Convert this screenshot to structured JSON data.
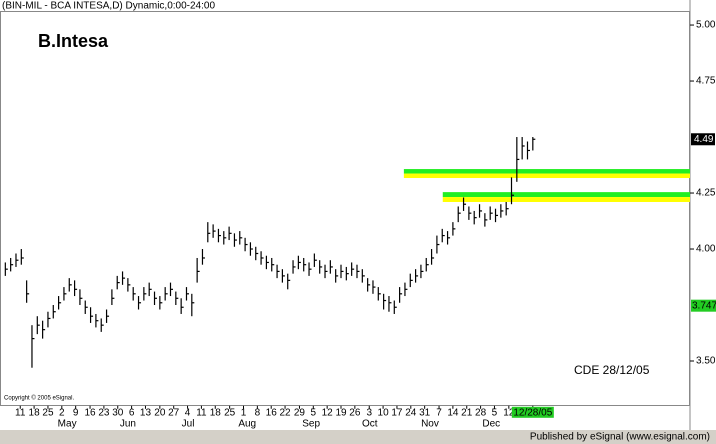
{
  "chart_data": {
    "type": "ohlc",
    "header": "(BIN-MIL - BCA INTESA,D) Dynamic,0:00-24:00",
    "title": "B.Intesa",
    "annotation": "CDE 28/12/05",
    "copyright": "Copyright © 2005 eSignal.",
    "footer": "Published by eSignal (www.esignal.com)",
    "bar_color": "#000000",
    "ylim": [
      3.3,
      5.06
    ],
    "yticks": [
      {
        "value": 5.0,
        "label": "5.00"
      },
      {
        "value": 4.75,
        "label": "4.75"
      },
      {
        "value": 4.25,
        "label": "4.25"
      },
      {
        "value": 4.0,
        "label": "4.00"
      },
      {
        "value": 3.5,
        "label": "3.50"
      }
    ],
    "last_price": {
      "value": 4.49,
      "label": "4.49"
    },
    "marker_price": 3.747,
    "xlim": [
      -1,
      128.5
    ],
    "xticks": [
      {
        "value": 2.8,
        "label": "11"
      },
      {
        "value": 5.4,
        "label": "18"
      },
      {
        "value": 8.0,
        "label": "25"
      },
      {
        "value": 10.6,
        "label": "2"
      },
      {
        "value": 13.2,
        "label": "9"
      },
      {
        "value": 15.9,
        "label": "16"
      },
      {
        "value": 18.5,
        "label": "23"
      },
      {
        "value": 21.1,
        "label": "30"
      },
      {
        "value": 23.7,
        "label": "6"
      },
      {
        "value": 26.3,
        "label": "13"
      },
      {
        "value": 29.0,
        "label": "20"
      },
      {
        "value": 31.6,
        "label": "27"
      },
      {
        "value": 34.2,
        "label": "4"
      },
      {
        "value": 36.8,
        "label": "11"
      },
      {
        "value": 39.4,
        "label": "18"
      },
      {
        "value": 42.1,
        "label": "25"
      },
      {
        "value": 44.7,
        "label": "1"
      },
      {
        "value": 47.3,
        "label": "8"
      },
      {
        "value": 49.9,
        "label": "16"
      },
      {
        "value": 52.5,
        "label": "22"
      },
      {
        "value": 55.2,
        "label": "29"
      },
      {
        "value": 57.8,
        "label": "5"
      },
      {
        "value": 60.4,
        "label": "12"
      },
      {
        "value": 63.0,
        "label": "19"
      },
      {
        "value": 65.6,
        "label": "26"
      },
      {
        "value": 68.3,
        "label": "3"
      },
      {
        "value": 70.9,
        "label": "10"
      },
      {
        "value": 73.5,
        "label": "17"
      },
      {
        "value": 76.1,
        "label": "24"
      },
      {
        "value": 78.7,
        "label": "31"
      },
      {
        "value": 81.4,
        "label": "7"
      },
      {
        "value": 84.0,
        "label": "14"
      },
      {
        "value": 86.6,
        "label": "21"
      },
      {
        "value": 89.2,
        "label": "28"
      },
      {
        "value": 91.8,
        "label": "5"
      },
      {
        "value": 94.5,
        "label": "12"
      },
      {
        "value": 99,
        "label": "12/28/05"
      }
    ],
    "months": [
      {
        "value": 11.6,
        "label": "May"
      },
      {
        "value": 23.0,
        "label": "Jun"
      },
      {
        "value": 34.3,
        "label": "Jul"
      },
      {
        "value": 45.4,
        "label": "Aug"
      },
      {
        "value": 57.4,
        "label": "Sep"
      },
      {
        "value": 68.4,
        "label": "Oct"
      },
      {
        "value": 79.7,
        "label": "Nov"
      },
      {
        "value": 91.2,
        "label": "Dec"
      }
    ],
    "zones": [
      {
        "x_start": 74.8,
        "top": 4.357,
        "bottom": 4.317
      },
      {
        "x_start": 82.1,
        "top": 4.254,
        "bottom": 4.21
      }
    ],
    "zone_colors": [
      "#22ee22",
      "#ffff00"
    ],
    "high": [
      3.94,
      3.96,
      3.98,
      4.0,
      3.86,
      3.66,
      3.7,
      3.68,
      3.72,
      3.75,
      3.79,
      3.83,
      3.87,
      3.86,
      3.82,
      3.77,
      3.74,
      3.71,
      3.69,
      3.73,
      3.82,
      3.88,
      3.9,
      3.87,
      3.83,
      3.79,
      3.83,
      3.85,
      3.81,
      3.79,
      3.83,
      3.85,
      3.81,
      3.78,
      3.83,
      3.8,
      3.96,
      4.0,
      4.12,
      4.11,
      4.09,
      4.08,
      4.1,
      4.07,
      4.08,
      4.05,
      4.03,
      4.01,
      3.99,
      3.97,
      3.96,
      3.93,
      3.91,
      3.89,
      3.95,
      3.97,
      3.96,
      3.94,
      3.98,
      3.95,
      3.93,
      3.95,
      3.91,
      3.93,
      3.92,
      3.94,
      3.93,
      3.91,
      3.87,
      3.86,
      3.83,
      3.8,
      3.79,
      3.77,
      3.83,
      3.85,
      3.89,
      3.91,
      3.93,
      3.96,
      4.0,
      4.06,
      4.09,
      4.08,
      4.12,
      4.19,
      4.23,
      4.19,
      4.17,
      4.2,
      4.16,
      4.19,
      4.18,
      4.2,
      4.21,
      4.32,
      4.5,
      4.5,
      4.48,
      4.5
    ],
    "low": [
      3.88,
      3.9,
      3.92,
      3.93,
      3.76,
      3.47,
      3.62,
      3.6,
      3.65,
      3.69,
      3.73,
      3.77,
      3.81,
      3.79,
      3.75,
      3.71,
      3.67,
      3.65,
      3.63,
      3.67,
      3.75,
      3.82,
      3.84,
      3.81,
      3.77,
      3.73,
      3.77,
      3.79,
      3.75,
      3.73,
      3.77,
      3.79,
      3.75,
      3.71,
      3.77,
      3.7,
      3.85,
      3.93,
      4.03,
      4.05,
      4.03,
      4.02,
      4.04,
      4.01,
      4.02,
      3.99,
      3.97,
      3.95,
      3.93,
      3.91,
      3.9,
      3.87,
      3.85,
      3.82,
      3.89,
      3.91,
      3.9,
      3.88,
      3.92,
      3.89,
      3.87,
      3.89,
      3.85,
      3.87,
      3.86,
      3.88,
      3.87,
      3.85,
      3.81,
      3.8,
      3.77,
      3.73,
      3.72,
      3.71,
      3.76,
      3.79,
      3.83,
      3.85,
      3.87,
      3.9,
      3.93,
      3.98,
      4.03,
      4.02,
      4.06,
      4.12,
      4.17,
      4.13,
      4.11,
      4.14,
      4.1,
      4.13,
      4.12,
      4.14,
      4.15,
      4.2,
      4.3,
      4.4,
      4.4,
      4.44
    ],
    "close": [
      3.91,
      3.93,
      3.95,
      3.96,
      3.8,
      3.6,
      3.66,
      3.64,
      3.69,
      3.72,
      3.76,
      3.8,
      3.84,
      3.82,
      3.78,
      3.74,
      3.7,
      3.68,
      3.66,
      3.7,
      3.78,
      3.85,
      3.87,
      3.84,
      3.8,
      3.76,
      3.8,
      3.82,
      3.78,
      3.76,
      3.8,
      3.82,
      3.78,
      3.74,
      3.8,
      3.76,
      3.9,
      3.96,
      4.07,
      4.08,
      4.06,
      4.05,
      4.07,
      4.04,
      4.05,
      4.02,
      4.0,
      3.98,
      3.96,
      3.94,
      3.93,
      3.9,
      3.88,
      3.86,
      3.92,
      3.94,
      3.93,
      3.91,
      3.95,
      3.92,
      3.9,
      3.92,
      3.88,
      3.9,
      3.89,
      3.91,
      3.9,
      3.88,
      3.84,
      3.83,
      3.8,
      3.77,
      3.76,
      3.74,
      3.8,
      3.82,
      3.86,
      3.88,
      3.9,
      3.93,
      3.96,
      4.02,
      4.06,
      4.05,
      4.09,
      4.16,
      4.2,
      4.16,
      4.14,
      4.17,
      4.13,
      4.16,
      4.15,
      4.17,
      4.18,
      4.24,
      4.4,
      4.46,
      4.44,
      4.49
    ]
  }
}
